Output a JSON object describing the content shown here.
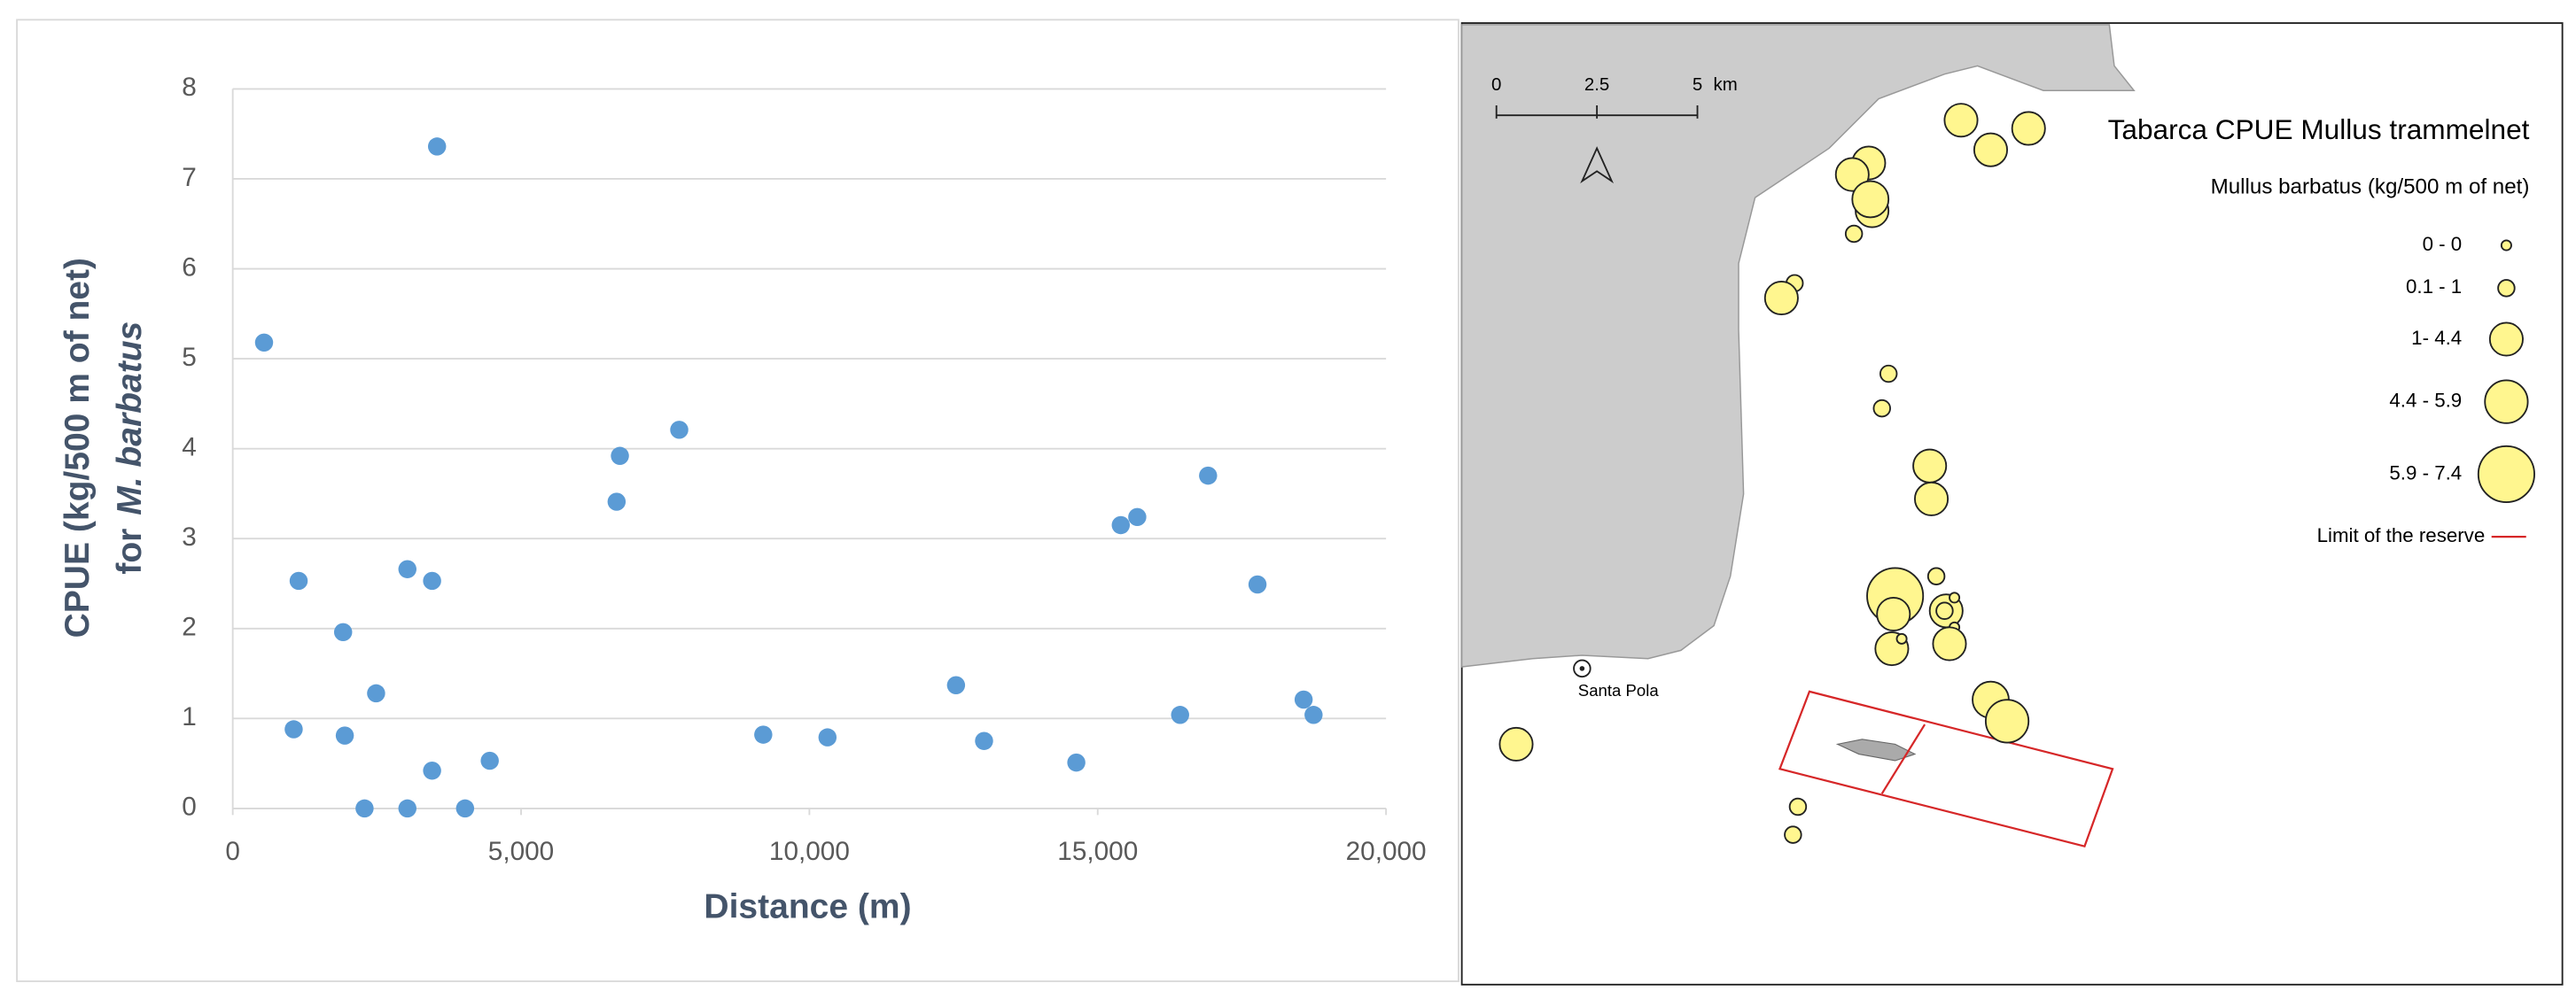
{
  "chart_data": {
    "type": "scatter",
    "color": "#5b9bd5",
    "grid": true,
    "xlabel": "Distance (m)",
    "ylabel": "CPUE  (kg/500 m of net)",
    "ylabel_prefix": "for",
    "ylabel_species": "M. barbatus",
    "x": [
      543,
      1057,
      1143,
      1914,
      1943,
      2286,
      2486,
      3029,
      3029,
      3457,
      3457,
      3543,
      4029,
      4457,
      6657,
      6714,
      7743,
      9200,
      10314,
      12543,
      13029,
      14629,
      15400,
      15686,
      16429,
      16914,
      17771,
      18571,
      18743
    ],
    "values": [
      5.18,
      0.88,
      2.53,
      1.96,
      0.81,
      0,
      1.28,
      2.66,
      0,
      2.53,
      0.42,
      7.36,
      0,
      0.53,
      3.41,
      3.92,
      4.21,
      0.82,
      0.79,
      1.37,
      0.75,
      0.51,
      3.15,
      3.24,
      1.04,
      3.7,
      2.49,
      1.21,
      1.04
    ],
    "xlim": [
      0,
      20000
    ],
    "xticks": [
      0,
      {
        "value": 5000,
        "label": "5,000"
      },
      {
        "value": 10000,
        "label": "10,000"
      },
      {
        "value": 15000,
        "label": "15,000"
      },
      {
        "value": 20000,
        "label": "20,000"
      }
    ],
    "ylim": [
      0,
      8
    ],
    "yticks": [
      0,
      1,
      2,
      3,
      4,
      5,
      6,
      7,
      8
    ]
  },
  "map": {
    "title": "Tabarca CPUE Mullus trammelnet",
    "subtitle": "Mullus barbatus (kg/500 m of net)",
    "legend": [
      "0 - 0",
      "0.1 - 1",
      "1- 4.4",
      "4.4 - 5.9",
      "5.9 - 7.4"
    ],
    "reserve_label": "Limit of the reserve",
    "place": "Santa Pola",
    "scale_labels": [
      "0",
      "2.5",
      "5"
    ],
    "scale_unit": "km"
  }
}
